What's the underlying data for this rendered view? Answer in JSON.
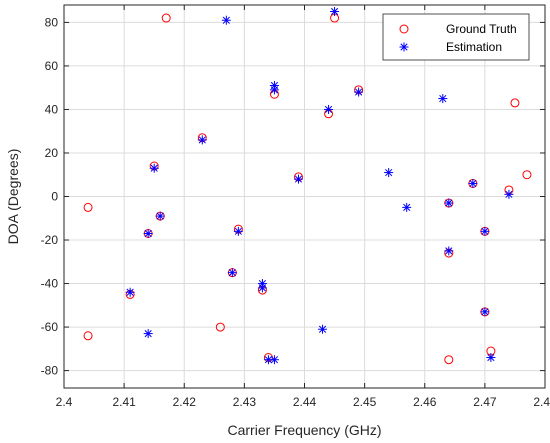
{
  "chart_data": {
    "type": "scatter",
    "title": "",
    "xlabel": "Carrier Frequency (GHz)",
    "ylabel": "DOA (Degrees)",
    "xlim": [
      2.4,
      2.48
    ],
    "ylim": [
      -88,
      88
    ],
    "xticks": [
      2.4,
      2.41,
      2.42,
      2.43,
      2.44,
      2.45,
      2.46,
      2.47,
      2.48
    ],
    "xtick_labels": [
      "2.4",
      "2.41",
      "2.42",
      "2.43",
      "2.44",
      "2.45",
      "2.46",
      "2.47",
      "2.48"
    ],
    "yticks": [
      -80,
      -60,
      -40,
      -20,
      0,
      20,
      40,
      60,
      80
    ],
    "ytick_labels": [
      "-80",
      "-60",
      "-40",
      "-20",
      "0",
      "20",
      "40",
      "60",
      "80"
    ],
    "grid": true,
    "legend_position": "top-right",
    "series": [
      {
        "name": "Ground Truth",
        "marker": "circle",
        "color": "#ff0000",
        "points": [
          [
            2.404,
            -5
          ],
          [
            2.404,
            -64
          ],
          [
            2.411,
            -45
          ],
          [
            2.414,
            -17
          ],
          [
            2.415,
            14
          ],
          [
            2.416,
            -9
          ],
          [
            2.417,
            82
          ],
          [
            2.423,
            27
          ],
          [
            2.426,
            -60
          ],
          [
            2.428,
            -35
          ],
          [
            2.429,
            -15
          ],
          [
            2.433,
            -43
          ],
          [
            2.434,
            -74
          ],
          [
            2.435,
            47
          ],
          [
            2.439,
            9
          ],
          [
            2.444,
            38
          ],
          [
            2.445,
            82
          ],
          [
            2.449,
            49
          ],
          [
            2.464,
            -3
          ],
          [
            2.464,
            -26
          ],
          [
            2.464,
            -75
          ],
          [
            2.468,
            6
          ],
          [
            2.47,
            -16
          ],
          [
            2.47,
            -53
          ],
          [
            2.471,
            -71
          ],
          [
            2.474,
            3
          ],
          [
            2.475,
            43
          ],
          [
            2.477,
            10
          ]
        ]
      },
      {
        "name": "Estimation",
        "marker": "asterisk",
        "color": "#0000ff",
        "points": [
          [
            2.411,
            -44
          ],
          [
            2.414,
            -63
          ],
          [
            2.414,
            -17
          ],
          [
            2.415,
            13
          ],
          [
            2.416,
            -9
          ],
          [
            2.423,
            26
          ],
          [
            2.427,
            81
          ],
          [
            2.428,
            -35
          ],
          [
            2.429,
            -16
          ],
          [
            2.433,
            -40
          ],
          [
            2.433,
            -42
          ],
          [
            2.434,
            -75
          ],
          [
            2.435,
            -75
          ],
          [
            2.435,
            49
          ],
          [
            2.435,
            51
          ],
          [
            2.439,
            8
          ],
          [
            2.443,
            -61
          ],
          [
            2.444,
            40
          ],
          [
            2.445,
            85
          ],
          [
            2.449,
            48
          ],
          [
            2.454,
            11
          ],
          [
            2.457,
            -5
          ],
          [
            2.463,
            45
          ],
          [
            2.464,
            -3
          ],
          [
            2.464,
            -25
          ],
          [
            2.468,
            6
          ],
          [
            2.47,
            -16
          ],
          [
            2.47,
            -53
          ],
          [
            2.471,
            -74
          ],
          [
            2.474,
            1
          ]
        ]
      }
    ]
  }
}
